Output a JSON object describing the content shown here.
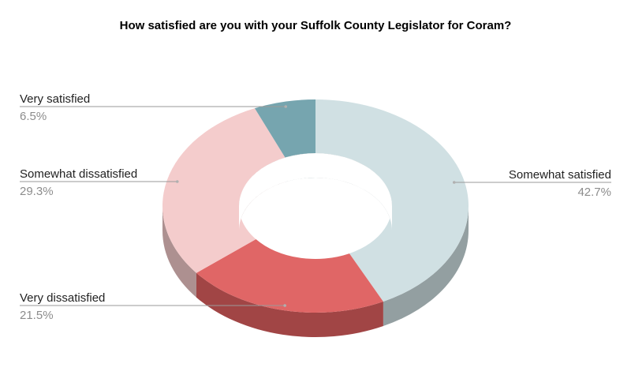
{
  "chart_data": {
    "type": "pie",
    "variant": "3d-donut",
    "title": "How satisfied are you with your Suffolk County Legislator for Coram?",
    "slices": [
      {
        "label": "Somewhat satisfied",
        "value": 42.7,
        "value_label": "42.7%",
        "color": "#d0e0e3",
        "side_color": "#939f a1"
      },
      {
        "label": "Very dissatisfied",
        "value": 21.5,
        "value_label": "21.5%",
        "color": "#e06666",
        "side_color": "#a14545"
      },
      {
        "label": "Somewhat dissatisfied",
        "value": 29.3,
        "value_label": "29.3%",
        "color": "#f4cccc",
        "side_color": "#ad9090"
      },
      {
        "label": "Very satisfied",
        "value": 6.5,
        "value_label": "6.5%",
        "color": "#76a5af",
        "side_color": "#537479"
      }
    ],
    "legend": "none"
  }
}
